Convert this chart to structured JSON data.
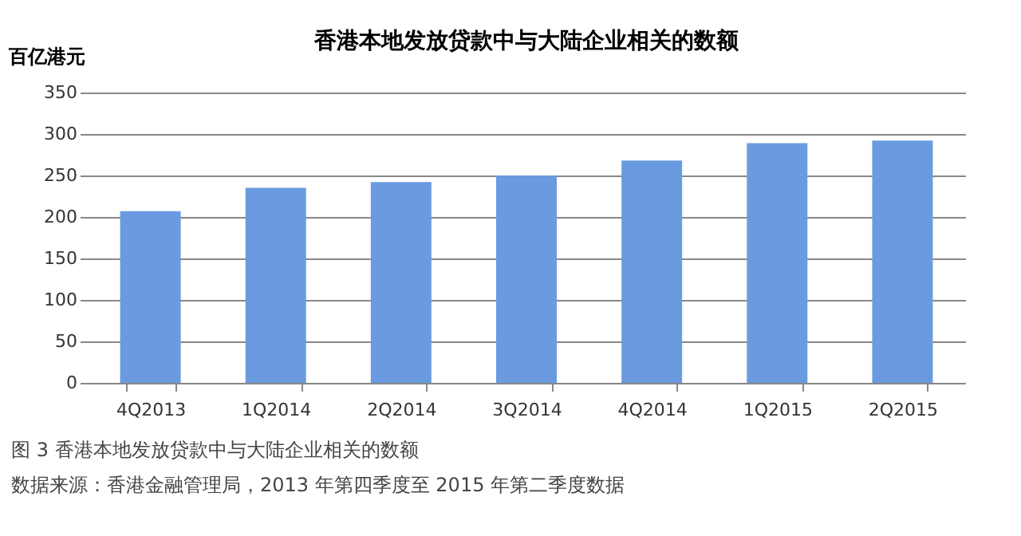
{
  "chart_data": {
    "type": "bar",
    "title": "香港本地发放贷款中与大陆企业相关的数额",
    "ylabel": "百亿港元",
    "categories": [
      "4Q2013",
      "1Q2014",
      "2Q2014",
      "3Q2014",
      "4Q2014",
      "1Q2015",
      "2Q2015"
    ],
    "values": [
      207,
      235,
      242,
      250,
      268,
      289,
      292
    ],
    "color": "#6a9be0",
    "ylim": [
      0,
      350
    ],
    "yticks": [
      0,
      50,
      100,
      150,
      200,
      250,
      300,
      350
    ],
    "grid": "y",
    "annotations": [
      "图 3 香港本地发放贷款中与大陆企业相关的数额",
      "数据来源：香港金融管理局，2013 年第四季度至 2015 年第二季度数据"
    ]
  }
}
